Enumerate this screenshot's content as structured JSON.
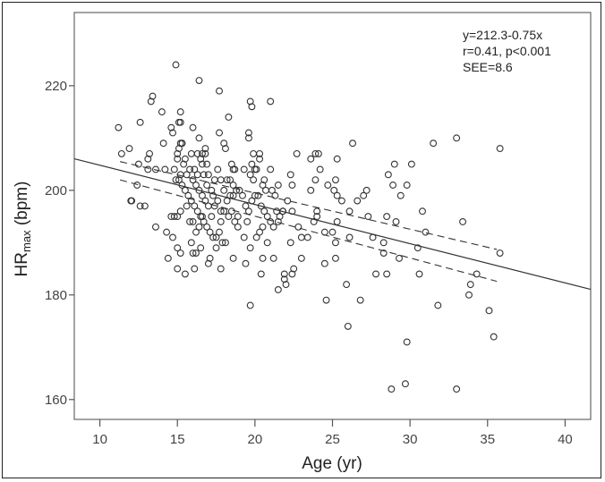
{
  "chart_data": {
    "type": "scatter",
    "title": "",
    "xlabel": "Age (yr)",
    "ylabel": {
      "main": "HR",
      "subscript": "max",
      "suffix": " (bpm)"
    },
    "xlim": [
      8.35,
      41.65
    ],
    "ylim": [
      156.2,
      234
    ],
    "xticks": [
      10,
      15,
      20,
      25,
      30,
      35,
      40
    ],
    "yticks": [
      160,
      180,
      200,
      220
    ],
    "grid": false,
    "marker": "open-circle",
    "colors": {
      "points": "#333333",
      "line": "#333333",
      "frame": "#555555"
    },
    "annotations": [
      "y=212.3-0.75x",
      "r=0.41, p<0.001",
      "SEE=8.6"
    ],
    "regression": {
      "intercept": 212.3,
      "slope": -0.75,
      "x_range": [
        8.35,
        41.65
      ]
    },
    "confidence_bands": [
      {
        "style": "dashed",
        "points": [
          [
            11.3,
            205.5
          ],
          [
            35.6,
            188.7
          ]
        ]
      },
      {
        "style": "dashed",
        "points": [
          [
            11.3,
            202.0
          ],
          [
            35.6,
            182.6
          ]
        ]
      }
    ],
    "points": [
      [
        14.9,
        224
      ],
      [
        16.4,
        221
      ],
      [
        17.7,
        219
      ],
      [
        13.4,
        218
      ],
      [
        13.3,
        217
      ],
      [
        19.7,
        217
      ],
      [
        19.8,
        216
      ],
      [
        21.0,
        217
      ],
      [
        11.2,
        212
      ],
      [
        12.6,
        213
      ],
      [
        14.0,
        215
      ],
      [
        15.2,
        215
      ],
      [
        15.1,
        213
      ],
      [
        15.2,
        213
      ],
      [
        18.3,
        214
      ],
      [
        16.0,
        212
      ],
      [
        14.6,
        212
      ],
      [
        14.7,
        211
      ],
      [
        17.7,
        211
      ],
      [
        19.6,
        211
      ],
      [
        19.6,
        210
      ],
      [
        16.4,
        210
      ],
      [
        14.1,
        209
      ],
      [
        15.2,
        209
      ],
      [
        15.3,
        209
      ],
      [
        18.0,
        209
      ],
      [
        31.5,
        209
      ],
      [
        33.0,
        210
      ],
      [
        26.3,
        209
      ],
      [
        35.8,
        208
      ],
      [
        11.9,
        208
      ],
      [
        11.4,
        207
      ],
      [
        13.2,
        207
      ],
      [
        15.0,
        207
      ],
      [
        15.9,
        207
      ],
      [
        16.3,
        207
      ],
      [
        16.6,
        207
      ],
      [
        16.8,
        208
      ],
      [
        18.1,
        208
      ],
      [
        19.9,
        207
      ],
      [
        20.3,
        207
      ],
      [
        22.7,
        207
      ],
      [
        23.9,
        207
      ],
      [
        24.1,
        207
      ],
      [
        29.0,
        205
      ],
      [
        30.1,
        205
      ],
      [
        25.3,
        206
      ],
      [
        23.6,
        206
      ],
      [
        12.5,
        205
      ],
      [
        13.1,
        206
      ],
      [
        13.1,
        204
      ],
      [
        13.6,
        204
      ],
      [
        14.2,
        204
      ],
      [
        14.8,
        204
      ],
      [
        18.5,
        205
      ],
      [
        18.6,
        204
      ],
      [
        19.3,
        204
      ],
      [
        20.0,
        204
      ],
      [
        21.0,
        204
      ],
      [
        24.2,
        204
      ],
      [
        22.3,
        203
      ],
      [
        28.6,
        203
      ],
      [
        12.4,
        201
      ],
      [
        28.9,
        201
      ],
      [
        29.8,
        201
      ],
      [
        23.9,
        202
      ],
      [
        25.2,
        202
      ],
      [
        24.7,
        201
      ],
      [
        22.4,
        201
      ],
      [
        21.5,
        201
      ],
      [
        23.6,
        200
      ],
      [
        25.1,
        200
      ],
      [
        25.3,
        199
      ],
      [
        27.2,
        200
      ],
      [
        27.0,
        199
      ],
      [
        25.6,
        198
      ],
      [
        26.6,
        198
      ],
      [
        29.4,
        199
      ],
      [
        12.0,
        198
      ],
      [
        12.05,
        198
      ],
      [
        12.6,
        197
      ],
      [
        12.9,
        197
      ],
      [
        22.1,
        198
      ],
      [
        21.8,
        196
      ],
      [
        22.4,
        196
      ],
      [
        26.1,
        196
      ],
      [
        30.8,
        196
      ],
      [
        27.3,
        195
      ],
      [
        28.5,
        195
      ],
      [
        29.1,
        194
      ],
      [
        33.4,
        194
      ],
      [
        23.8,
        194
      ],
      [
        25.3,
        194
      ],
      [
        24.0,
        195
      ],
      [
        24.0,
        196
      ],
      [
        22.8,
        193
      ],
      [
        13.6,
        193
      ],
      [
        14.3,
        192
      ],
      [
        24.5,
        192
      ],
      [
        25.0,
        192
      ],
      [
        31.0,
        192
      ],
      [
        14.7,
        191
      ],
      [
        23.0,
        191
      ],
      [
        23.4,
        191
      ],
      [
        26.1,
        191
      ],
      [
        27.6,
        191
      ],
      [
        22.3,
        190
      ],
      [
        25.2,
        190
      ],
      [
        28.3,
        190
      ],
      [
        15.0,
        189
      ],
      [
        19.7,
        189
      ],
      [
        30.5,
        189
      ],
      [
        20.8,
        190
      ],
      [
        15.2,
        188
      ],
      [
        16.5,
        189
      ],
      [
        28.3,
        188
      ],
      [
        35.8,
        188
      ],
      [
        14.4,
        187
      ],
      [
        18.6,
        187
      ],
      [
        20.5,
        187
      ],
      [
        21.2,
        187
      ],
      [
        23.0,
        187
      ],
      [
        25.2,
        187
      ],
      [
        29.3,
        187
      ],
      [
        17.0,
        186
      ],
      [
        17.1,
        187
      ],
      [
        19.4,
        186
      ],
      [
        24.5,
        186
      ],
      [
        15.0,
        185
      ],
      [
        16.1,
        185
      ],
      [
        17.8,
        185
      ],
      [
        15.5,
        184
      ],
      [
        20.4,
        184
      ],
      [
        21.9,
        184
      ],
      [
        21.9,
        183
      ],
      [
        22.4,
        184
      ],
      [
        27.8,
        184
      ],
      [
        28.5,
        184
      ],
      [
        30.6,
        184
      ],
      [
        34.3,
        184
      ],
      [
        22.5,
        185
      ],
      [
        22.0,
        182
      ],
      [
        25.9,
        182
      ],
      [
        33.9,
        182
      ],
      [
        21.5,
        181
      ],
      [
        33.8,
        180
      ],
      [
        19.7,
        178
      ],
      [
        24.6,
        179
      ],
      [
        26.8,
        179
      ],
      [
        31.8,
        178
      ],
      [
        35.1,
        177
      ],
      [
        26.0,
        174
      ],
      [
        35.4,
        172
      ],
      [
        29.8,
        171
      ],
      [
        28.8,
        162
      ],
      [
        29.7,
        163
      ],
      [
        33.0,
        162
      ],
      [
        15.1,
        202
      ],
      [
        15.3,
        201
      ],
      [
        15.5,
        200
      ],
      [
        15.2,
        203
      ],
      [
        15.4,
        205
      ],
      [
        15.0,
        206
      ],
      [
        15.6,
        203
      ],
      [
        15.8,
        204
      ],
      [
        16.0,
        202
      ],
      [
        16.2,
        201
      ],
      [
        16.4,
        200
      ],
      [
        16.6,
        199
      ],
      [
        16.8,
        198
      ],
      [
        17.0,
        197
      ],
      [
        15.7,
        199
      ],
      [
        15.9,
        198
      ],
      [
        16.1,
        197
      ],
      [
        16.3,
        196
      ],
      [
        16.5,
        195
      ],
      [
        16.7,
        194
      ],
      [
        16.9,
        193
      ],
      [
        17.1,
        192
      ],
      [
        17.3,
        191
      ],
      [
        17.5,
        191
      ],
      [
        17.7,
        192
      ],
      [
        17.9,
        190
      ],
      [
        18.1,
        190
      ],
      [
        14.8,
        195
      ],
      [
        15.0,
        195
      ],
      [
        14.6,
        195
      ],
      [
        15.2,
        196
      ],
      [
        15.6,
        197
      ],
      [
        15.8,
        194
      ],
      [
        16.0,
        194
      ],
      [
        16.2,
        192
      ],
      [
        16.4,
        193
      ],
      [
        16.6,
        195
      ],
      [
        15.9,
        190
      ],
      [
        16.0,
        188
      ],
      [
        16.2,
        188
      ],
      [
        17.2,
        195
      ],
      [
        17.4,
        197
      ],
      [
        17.6,
        198
      ],
      [
        17.8,
        196
      ],
      [
        18.0,
        196
      ],
      [
        18.2,
        198
      ],
      [
        18.4,
        199
      ],
      [
        18.6,
        201
      ],
      [
        18.8,
        200
      ],
      [
        19.0,
        200
      ],
      [
        19.2,
        199
      ],
      [
        19.4,
        197
      ],
      [
        19.6,
        196
      ],
      [
        19.8,
        198
      ],
      [
        20.0,
        199
      ],
      [
        20.2,
        199
      ],
      [
        20.4,
        197
      ],
      [
        20.6,
        196
      ],
      [
        20.8,
        195
      ],
      [
        21.0,
        194
      ],
      [
        21.2,
        193
      ],
      [
        21.4,
        196
      ],
      [
        21.6,
        195
      ],
      [
        19.5,
        194
      ],
      [
        19.3,
        191
      ],
      [
        20.1,
        191
      ],
      [
        20.3,
        192
      ],
      [
        20.5,
        193
      ],
      [
        17.0,
        203
      ],
      [
        17.2,
        200
      ],
      [
        17.4,
        202
      ],
      [
        17.6,
        204
      ],
      [
        17.8,
        202
      ],
      [
        18.0,
        200
      ],
      [
        18.2,
        202
      ],
      [
        18.4,
        202
      ],
      [
        18.6,
        199
      ],
      [
        16.6,
        205
      ],
      [
        16.8,
        207
      ],
      [
        16.5,
        206
      ],
      [
        16.7,
        203
      ],
      [
        16.9,
        201
      ],
      [
        16.3,
        203
      ],
      [
        16.1,
        204
      ],
      [
        15.5,
        206
      ],
      [
        15.3,
        209
      ],
      [
        15.1,
        208
      ],
      [
        14.9,
        202
      ],
      [
        18.5,
        196
      ],
      [
        18.7,
        194
      ],
      [
        18.9,
        193
      ],
      [
        18.3,
        195
      ],
      [
        17.5,
        189
      ],
      [
        17.8,
        194
      ],
      [
        19.9,
        202
      ],
      [
        20.1,
        204
      ],
      [
        20.5,
        201
      ],
      [
        20.7,
        200
      ],
      [
        21.1,
        200
      ],
      [
        21.3,
        199
      ],
      [
        19.7,
        203
      ],
      [
        19.8,
        205
      ],
      [
        20.3,
        206
      ],
      [
        20.6,
        202
      ],
      [
        17.3,
        199
      ],
      [
        16.9,
        205
      ],
      [
        18.7,
        204
      ],
      [
        18.9,
        195
      ],
      [
        21.5,
        194
      ],
      [
        21.8,
        196
      ]
    ]
  }
}
